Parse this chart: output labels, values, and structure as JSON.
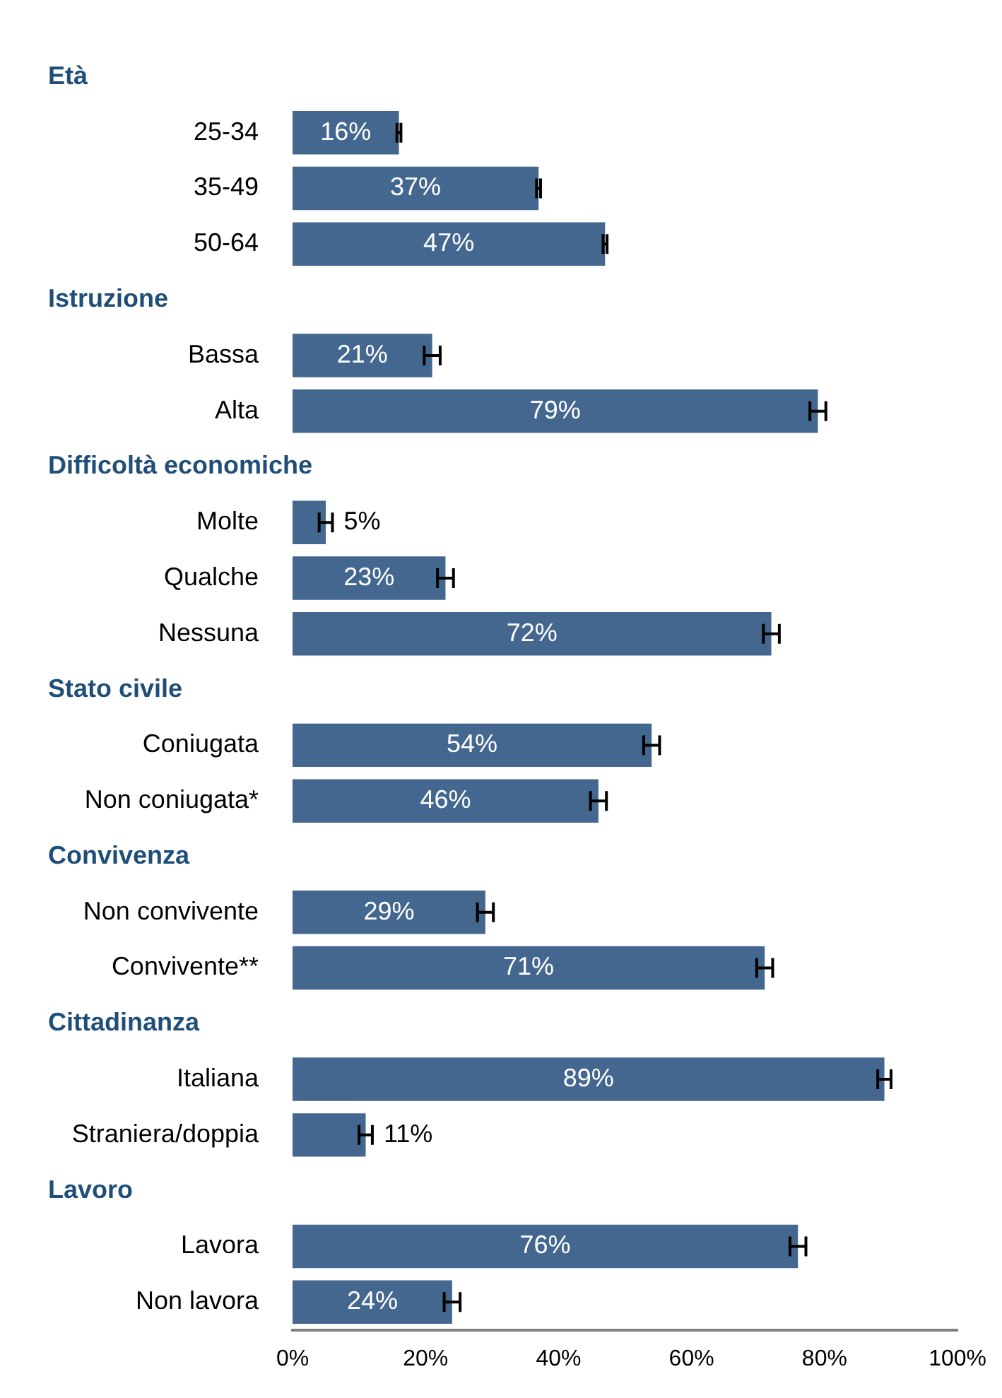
{
  "chart_data": {
    "type": "bar",
    "orientation": "horizontal",
    "categories": [
      null,
      "25-34",
      "35-49",
      "50-64",
      null,
      "Bassa",
      "Alta",
      null,
      "Molte",
      "Qualche",
      "Nessuna",
      null,
      "Coniugata",
      "Non coniugata*",
      null,
      "Non convivente",
      "Convivente**",
      null,
      "Italiana",
      "Straniera/doppia",
      null,
      "Lavora",
      "Non lavora"
    ],
    "values": [
      null,
      16,
      37,
      47,
      null,
      21,
      79,
      null,
      5,
      23,
      72,
      null,
      54,
      46,
      null,
      29,
      71,
      null,
      89,
      11,
      null,
      76,
      24
    ],
    "value_labels": [
      null,
      "16%",
      "37%",
      "47%",
      null,
      "21%",
      "79%",
      null,
      "5%",
      "23%",
      "72%",
      null,
      "54%",
      "46%",
      null,
      "29%",
      "71%",
      null,
      "89%",
      "11%",
      null,
      "76%",
      "24%"
    ],
    "errors": [
      null,
      0.3,
      0.3,
      0.3,
      null,
      1.2,
      1.2,
      null,
      1,
      1.2,
      1.2,
      null,
      1.2,
      1.2,
      null,
      1.2,
      1.2,
      null,
      1,
      1,
      null,
      1.2,
      1.2
    ],
    "color": "#44678f",
    "annotations": [
      "Età",
      "Istruzione",
      "Difficoltà economiche",
      "Stato civile",
      "Convivenza",
      "Cittadinanza",
      "Lavoro"
    ],
    "xlim": [
      0,
      100
    ],
    "xticks": [
      {
        "value": 0,
        "label": "0%"
      },
      {
        "value": 20,
        "label": "20%"
      },
      {
        "value": 40,
        "label": "40%"
      },
      {
        "value": 60,
        "label": "60%"
      },
      {
        "value": 80,
        "label": "80%"
      },
      {
        "value": 100,
        "label": "100%"
      }
    ],
    "grid": false,
    "legend": false
  }
}
